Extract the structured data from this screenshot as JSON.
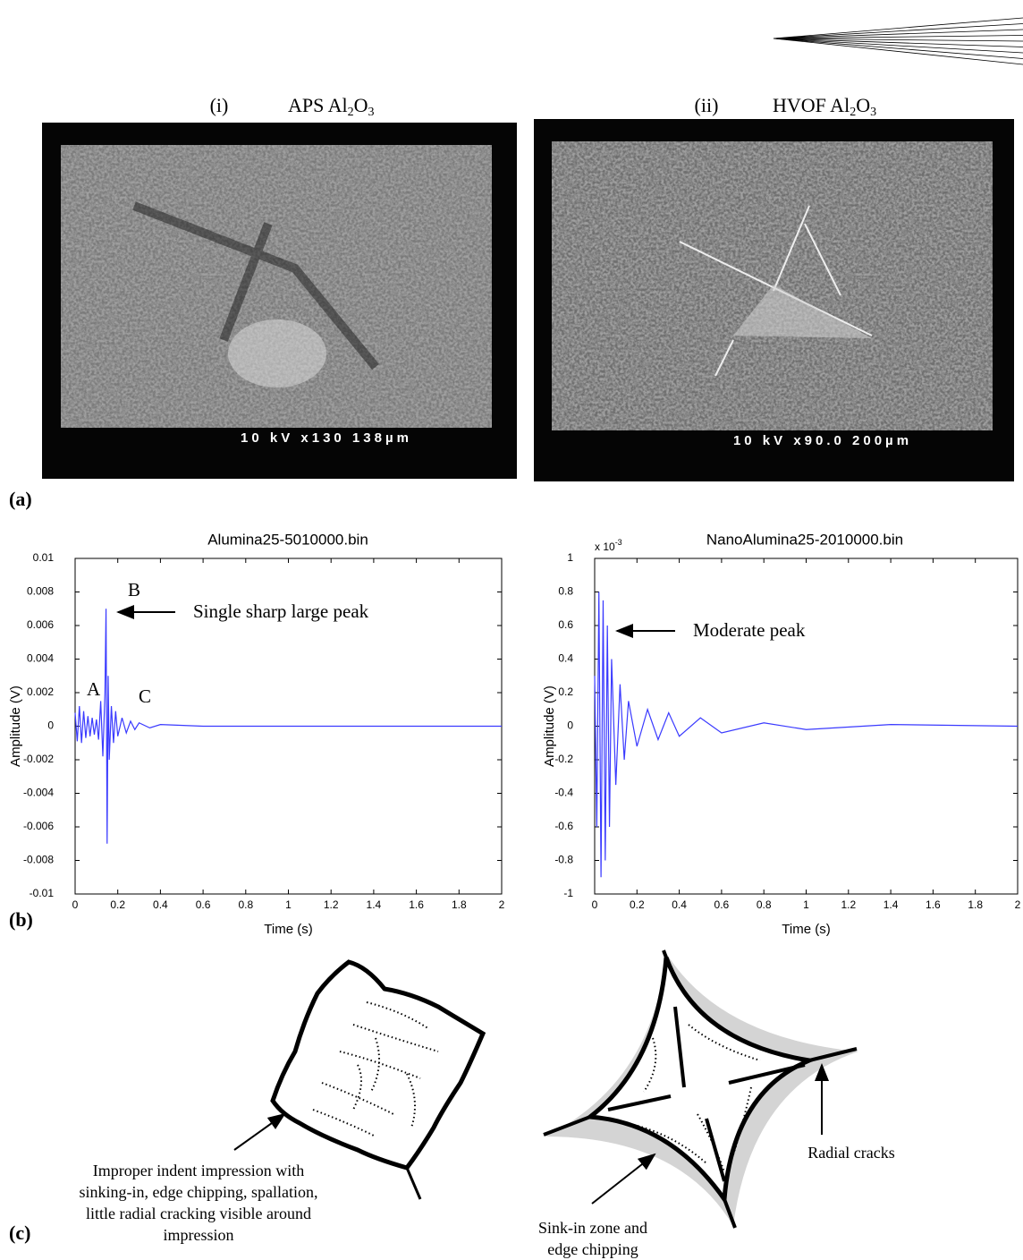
{
  "panel_labels": [
    "(a)",
    "(b)",
    "(c)"
  ],
  "sem_images": [
    {
      "index": "(i)",
      "name": [
        "APS Al",
        "2",
        "O",
        "3"
      ],
      "scale_label": "10 kV  x130  138µm"
    },
    {
      "index": "(ii)",
      "name": [
        "HVOF Al",
        "2",
        "O",
        "3"
      ],
      "scale_label": "10 kV x90.0  200µm"
    }
  ],
  "chart_data": [
    {
      "type": "line",
      "title": "Alumina25-5010000.bin",
      "xlabel": "Time (s)",
      "ylabel": "Amplitude (V)",
      "x": [
        0,
        0.01,
        0.02,
        0.03,
        0.04,
        0.05,
        0.06,
        0.07,
        0.08,
        0.09,
        0.1,
        0.11,
        0.12,
        0.13,
        0.14,
        0.145,
        0.15,
        0.155,
        0.16,
        0.17,
        0.18,
        0.19,
        0.2,
        0.22,
        0.24,
        0.26,
        0.28,
        0.3,
        0.35,
        0.4,
        0.6,
        0.8,
        1,
        1.5,
        2
      ],
      "values": [
        0.0008,
        -0.0009,
        0.0012,
        -0.001,
        0.0009,
        -0.0007,
        0.0006,
        -0.0006,
        0.0005,
        -0.0005,
        0.0004,
        -0.0008,
        0.0015,
        -0.0018,
        0.002,
        0.007,
        -0.007,
        0.003,
        -0.002,
        0.0012,
        -0.001,
        0.0009,
        -0.0006,
        0.0005,
        -0.0004,
        0.0003,
        -0.0002,
        0.0002,
        -0.0001,
        0.0001,
        0,
        0,
        0,
        0,
        0
      ],
      "color": "#3a3aff",
      "xlim": [
        0,
        2
      ],
      "ylim": [
        -0.01,
        0.01
      ],
      "xticks": [
        0,
        0.2,
        0.4,
        0.6,
        0.8,
        1,
        1.2,
        1.4,
        1.6,
        1.8,
        2
      ],
      "yticks": [
        -0.01,
        -0.008,
        -0.006,
        -0.004,
        -0.002,
        0,
        0.002,
        0.004,
        0.006,
        0.008,
        0.01
      ],
      "annotations": [
        "A",
        "B",
        "C",
        "Single sharp large peak"
      ]
    },
    {
      "type": "line",
      "title": "NanoAlumina25-2010000.bin",
      "xlabel": "Time (s)",
      "ylabel": "Amplitude (V)",
      "y_multiplier": {
        "base": "x 10",
        "exponent": "-3"
      },
      "x": [
        0,
        0.01,
        0.02,
        0.03,
        0.04,
        0.05,
        0.06,
        0.07,
        0.08,
        0.1,
        0.12,
        0.14,
        0.16,
        0.2,
        0.25,
        0.3,
        0.35,
        0.4,
        0.5,
        0.6,
        0.8,
        1,
        1.4,
        2
      ],
      "values": [
        0.3,
        -0.6,
        0.8,
        -0.9,
        0.75,
        -0.8,
        0.6,
        -0.6,
        0.4,
        -0.35,
        0.25,
        -0.2,
        0.15,
        -0.12,
        0.1,
        -0.08,
        0.08,
        -0.06,
        0.05,
        -0.04,
        0.02,
        -0.02,
        0.01,
        0
      ],
      "color": "#3a3aff",
      "xlim": [
        0,
        2
      ],
      "ylim": [
        -1,
        1
      ],
      "xticks": [
        0,
        0.2,
        0.4,
        0.6,
        0.8,
        1,
        1.2,
        1.4,
        1.6,
        1.8,
        2
      ],
      "yticks": [
        -1,
        -0.8,
        -0.6,
        -0.4,
        -0.2,
        0,
        0.2,
        0.4,
        0.6,
        0.8,
        1
      ],
      "annotations": [
        "Moderate peak"
      ]
    }
  ],
  "sketches": {
    "left_caption": [
      "Improper indent impression with",
      "sinking-in, edge chipping, spallation,",
      "little radial cracking visible around",
      "impression"
    ],
    "middle_caption": [
      "Sink-in zone and",
      "edge chipping"
    ],
    "right_caption": "Radial cracks"
  }
}
